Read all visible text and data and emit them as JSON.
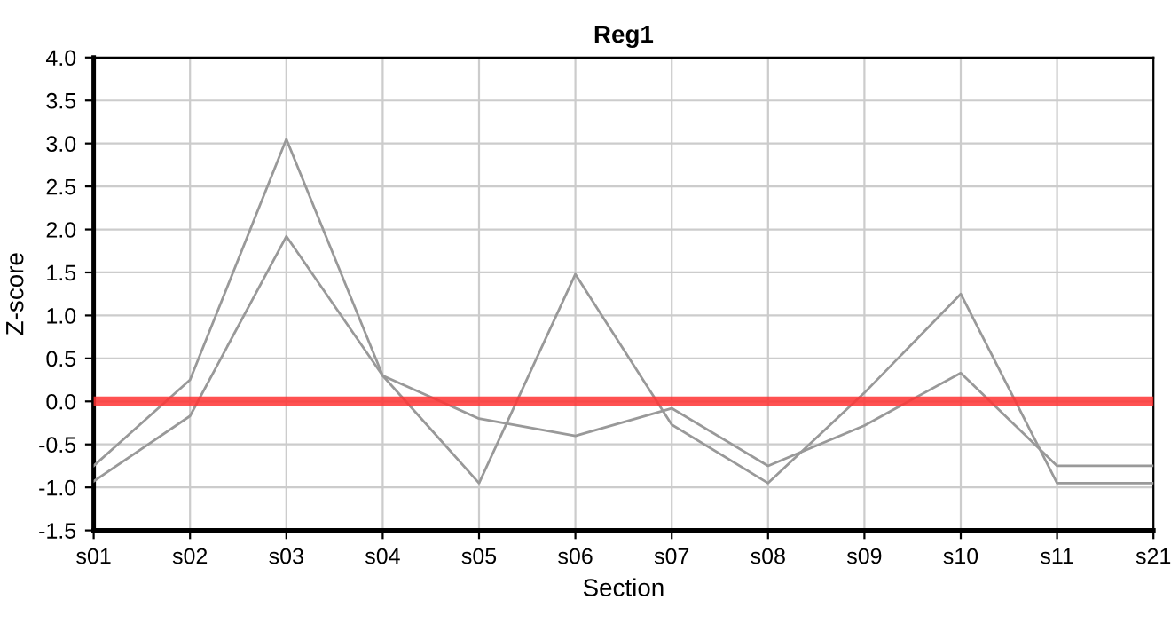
{
  "chart_data": {
    "type": "line",
    "title": "Reg1",
    "xlabel": "Section",
    "ylabel": "Z-score",
    "categories": [
      "s01",
      "s02",
      "s03",
      "s04",
      "s05",
      "s06",
      "s07",
      "s08",
      "s09",
      "s10",
      "s11",
      "s21"
    ],
    "series": [
      {
        "color": "#999999",
        "values": [
          -0.75,
          0.25,
          3.05,
          0.3,
          -0.95,
          1.48,
          -0.27,
          -0.95,
          0.1,
          1.25,
          -0.95,
          -0.95
        ]
      },
      {
        "color": "#999999",
        "values": [
          -0.93,
          -0.17,
          1.92,
          0.3,
          -0.2,
          -0.4,
          -0.08,
          -0.75,
          -0.28,
          0.33,
          -0.75,
          -0.75
        ]
      }
    ],
    "ylim": [
      -1.5,
      4.0
    ],
    "yticks": [
      {
        "value": -1.5,
        "label": "-1.5"
      },
      {
        "value": -1.0,
        "label": "-1.0"
      },
      {
        "value": -0.5,
        "label": "-0.5"
      },
      {
        "value": 0.0,
        "label": "0.0"
      },
      {
        "value": 0.5,
        "label": "0.5"
      },
      {
        "value": 1.0,
        "label": "1.0"
      },
      {
        "value": 1.5,
        "label": "1.5"
      },
      {
        "value": 2.0,
        "label": "2.0"
      },
      {
        "value": 2.5,
        "label": "2.5"
      },
      {
        "value": 3.0,
        "label": "3.0"
      },
      {
        "value": 3.5,
        "label": "3.5"
      },
      {
        "value": 4.0,
        "label": "4.0"
      }
    ],
    "grid": true,
    "marker": "none",
    "line_style": "solid",
    "ref_lines": [
      {
        "axis": "y",
        "value": 0,
        "color": "#ff3333"
      }
    ]
  }
}
